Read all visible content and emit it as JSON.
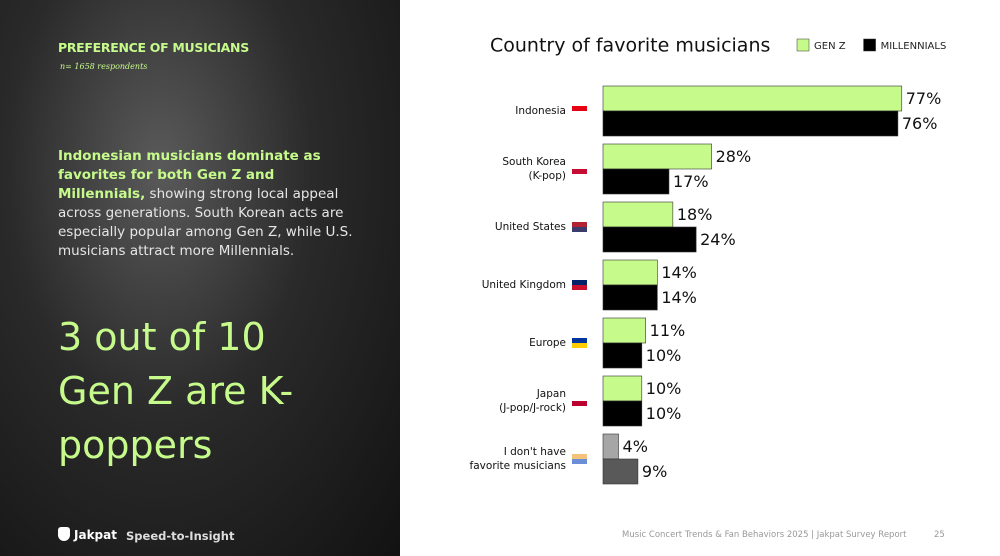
{
  "panel": {
    "section_title": "PREFERENCE OF MUSICIANS",
    "respondents": "n= 1658 respondents",
    "summary_highlight": "Indonesian musicians dominate as favorites for both Gen Z and Millennials,",
    "summary": "showing strong local appeal across generations. South Korean acts are especially popular among Gen Z, while U.S. musicians attract more Millennials.",
    "headline": "3 out of 10 Gen Z are K-poppers",
    "brand": "Jakpat",
    "tagline": "Speed-to-Insight"
  },
  "footer": {
    "report": "Music Concert Trends & Fan Behaviors 2025 | Jakpat Survey Report",
    "page": "25"
  },
  "chart_data": {
    "type": "bar",
    "orientation": "horizontal",
    "title": "Country of favorite musicians",
    "categories": [
      "Indonesia",
      "South Korea\n(K-pop)",
      "United States",
      "United Kingdom",
      "Europe",
      "Japan\n(J-pop/J-rock)",
      "I don't have\nfavorite musicians"
    ],
    "xlim": [
      0,
      100
    ],
    "series": [
      {
        "name": "GEN Z",
        "color": "#c6fb8c",
        "colors": [
          "#c6fb8c",
          "#c6fb8c",
          "#c6fb8c",
          "#c6fb8c",
          "#c6fb8c",
          "#c6fb8c",
          "#a6a6a6"
        ],
        "values": [
          77,
          28,
          18,
          14,
          11,
          10,
          4
        ],
        "value_labels": [
          "77%",
          "28%",
          "18%",
          "14%",
          "11%",
          "10%",
          "4%"
        ]
      },
      {
        "name": "MILLENNIALS",
        "color": "#000000",
        "colors": [
          "#000000",
          "#000000",
          "#000000",
          "#000000",
          "#000000",
          "#000000",
          "#595959"
        ],
        "values": [
          76,
          17,
          24,
          14,
          10,
          10,
          9
        ],
        "value_labels": [
          "76%",
          "17%",
          "24%",
          "14%",
          "10%",
          "10%",
          "9%"
        ]
      }
    ]
  }
}
